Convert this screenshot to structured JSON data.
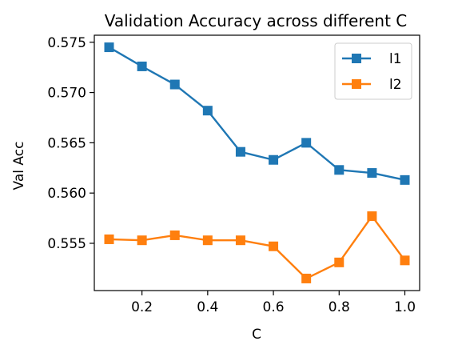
{
  "chart_data": {
    "type": "line",
    "title": "Validation Accuracy across different C",
    "xlabel": "C",
    "ylabel": "Val Acc",
    "x": [
      0.1,
      0.2,
      0.3,
      0.4,
      0.5,
      0.6,
      0.7,
      0.8,
      0.9,
      1.0
    ],
    "xlim": [
      0.055,
      1.045
    ],
    "ylim": [
      0.5503,
      0.5757
    ],
    "xticks": [
      0.2,
      0.4,
      0.6,
      0.8,
      1.0
    ],
    "xtick_labels": [
      "0.2",
      "0.4",
      "0.6",
      "0.8",
      "1.0"
    ],
    "yticks": [
      0.555,
      0.56,
      0.565,
      0.57,
      0.575
    ],
    "ytick_labels": [
      "0.555",
      "0.560",
      "0.565",
      "0.570",
      "0.575"
    ],
    "grid": false,
    "legend_position": "top-right",
    "marker": "square",
    "series": [
      {
        "name": "l1",
        "color": "#1f77b4",
        "values": [
          0.5745,
          0.5726,
          0.5708,
          0.5682,
          0.5641,
          0.5633,
          0.565,
          0.5623,
          0.562,
          0.5613
        ]
      },
      {
        "name": "l2",
        "color": "#ff7f0e",
        "values": [
          0.5554,
          0.5553,
          0.5558,
          0.5553,
          0.5553,
          0.5547,
          0.5515,
          0.5531,
          0.5577,
          0.5533
        ]
      }
    ]
  }
}
